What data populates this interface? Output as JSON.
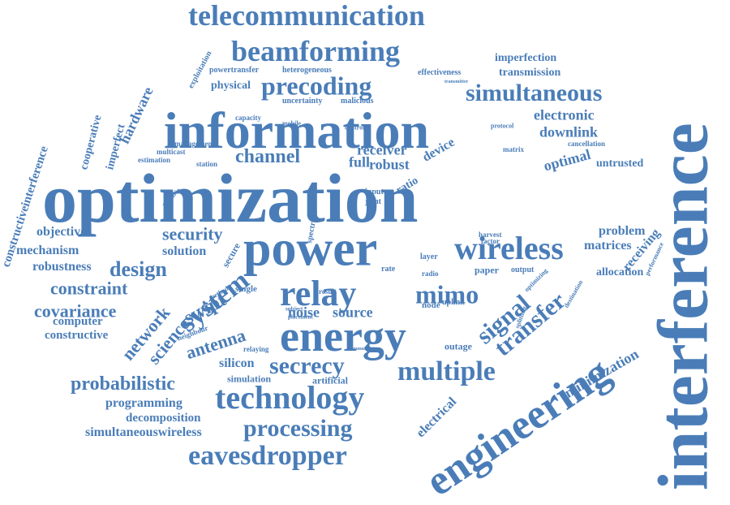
{
  "cloud": {
    "color": "#4a7db8",
    "words": [
      "optimization",
      "interference",
      "information",
      "power",
      "energy",
      "engineering",
      "telecommunication",
      "beamforming",
      "precoding",
      "simultaneous",
      "relay",
      "wireless",
      "technology",
      "multiple",
      "eavesdropper",
      "secrecy",
      "processing",
      "system",
      "mimo",
      "signal",
      "transfer",
      "channel",
      "design",
      "security",
      "probabilistic",
      "constraint",
      "covariance",
      "network",
      "science",
      "swipt",
      "antenna",
      "noise",
      "source",
      "receiver",
      "robust",
      "electronic",
      "downlink",
      "optimal",
      "untrusted",
      "imperfection",
      "transmission",
      "hardware",
      "cooperative",
      "imperfect",
      "constructiveinterference",
      "objective",
      "mechanism",
      "robustness",
      "solution",
      "computer",
      "constructive",
      "programming",
      "decomposition",
      "simultaneouswireless",
      "silicon",
      "simulation",
      "artificial",
      "minimization",
      "receiving",
      "problem",
      "matrices",
      "allocation",
      "electrical",
      "outage",
      "physical",
      "powertransfer",
      "heterogeneous",
      "effectiveness",
      "uncertainty",
      "malicious",
      "capacity",
      "management",
      "multicast",
      "estimation",
      "station",
      "exploitation",
      "cancellation",
      "full",
      "device",
      "matrix",
      "paper",
      "output",
      "performance",
      "destination",
      "optimizing",
      "node",
      "uplink",
      "layer",
      "radio",
      "rate",
      "secure",
      "method",
      "single",
      "result",
      "neighbour",
      "relaying",
      "scenario",
      "input",
      "joint",
      "ratio",
      "spectrum",
      "mobile",
      "control",
      "protocol",
      "harvest",
      "factor",
      "transmitter",
      "communicate",
      "splitting",
      "subject",
      "placement"
    ]
  }
}
